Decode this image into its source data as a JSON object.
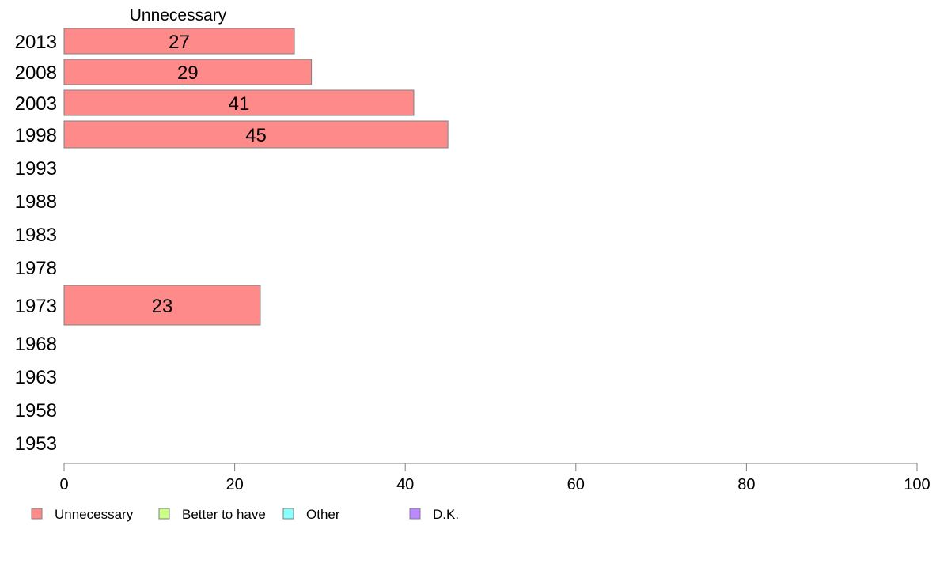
{
  "chart_data": {
    "type": "bar",
    "orientation": "horizontal",
    "column_title": "Unnecessary",
    "categories": [
      "2013",
      "2008",
      "2003",
      "1998",
      "1993",
      "1988",
      "1983",
      "1978",
      "1973",
      "1968",
      "1963",
      "1958",
      "1953"
    ],
    "series": [
      {
        "name": "Unnecessary",
        "color": "#ff8a8a",
        "values": [
          27,
          29,
          41,
          45,
          null,
          null,
          null,
          null,
          23,
          null,
          null,
          null,
          null
        ],
        "labels": [
          "27",
          "29",
          "41",
          "45",
          "",
          "",
          "",
          "",
          "23",
          "",
          "",
          "",
          ""
        ]
      }
    ],
    "xlim": [
      0,
      100
    ],
    "xticks": [
      "0",
      "20",
      "40",
      "60",
      "80",
      "100"
    ],
    "grid": false,
    "legend_position": "bottom-left",
    "legend": [
      {
        "label": "Unnecessary",
        "color": "#ff8a8a"
      },
      {
        "label": "Better to have",
        "color": "#ccff88"
      },
      {
        "label": "Other",
        "color": "#88ffff"
      },
      {
        "label": "D.K.",
        "color": "#bb88ff"
      }
    ]
  }
}
